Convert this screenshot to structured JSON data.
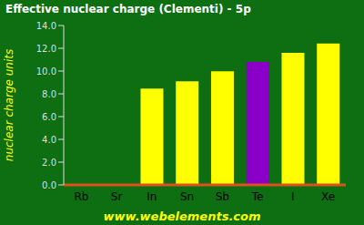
{
  "chart_data": {
    "type": "bar",
    "title": "Effective nuclear charge (Clementi) - 5p",
    "y_label": "nuclear charge units",
    "annotation": "www.webelements.com",
    "categories": [
      "Rb",
      "Sr",
      "In",
      "Sn",
      "Sb",
      "Te",
      "I",
      "Xe"
    ],
    "values": [
      null,
      null,
      8.47,
      9.1,
      9.99,
      10.81,
      11.61,
      12.42
    ],
    "colors": [
      "#ffff00",
      "#ffff00",
      "#ffff00",
      "#ffff00",
      "#ffff00",
      "#8a00c8",
      "#ffff00",
      "#ffff00"
    ],
    "ylim": [
      0,
      14
    ],
    "yticks": [
      {
        "value": 0,
        "label": "0.0"
      },
      {
        "value": 2,
        "label": "2.0"
      },
      {
        "value": 4,
        "label": "4.0"
      },
      {
        "value": 6,
        "label": "6.0"
      },
      {
        "value": 8,
        "label": "8.0"
      },
      {
        "value": 10,
        "label": "10.0"
      },
      {
        "value": 12,
        "label": "12.0"
      },
      {
        "value": 14,
        "label": "14.0"
      }
    ],
    "grid": false
  }
}
